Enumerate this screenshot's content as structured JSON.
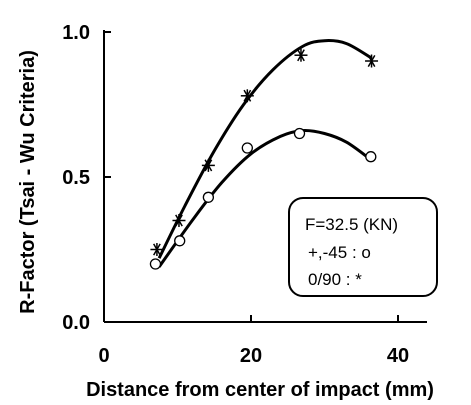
{
  "chart_data": {
    "type": "scatter",
    "xlabel": "Distance from center of impact (mm)",
    "ylabel": "R-Factor  (Tsai - Wu Criteria)",
    "xlim": [
      0,
      42
    ],
    "ylim": [
      0,
      1.0
    ],
    "xticks": [
      0,
      20,
      40
    ],
    "yticks": [
      0.0,
      0.5,
      1.0
    ],
    "xtick_labels": [
      "0",
      "20",
      "40"
    ],
    "ytick_labels": [
      "0.0",
      "0.5",
      "1.0"
    ],
    "grid": false,
    "legend_box": {
      "lines": [
        "F=32.5 (KN)",
        "+,-45 :  o",
        "0/90  : *"
      ],
      "placement": "bottom-right"
    },
    "series": [
      {
        "marker": "circle",
        "x": [
          7.0,
          10.3,
          14.2,
          19.5,
          26.6,
          36.3
        ],
        "y": [
          0.2,
          0.28,
          0.43,
          0.6,
          0.65,
          0.57
        ],
        "fit_x": [
          7.5,
          12,
          16,
          20,
          24,
          27,
          30,
          33,
          36.3
        ],
        "fit_y": [
          0.19,
          0.35,
          0.48,
          0.58,
          0.64,
          0.66,
          0.65,
          0.62,
          0.56
        ]
      },
      {
        "marker": "asterisk",
        "x": [
          7.2,
          10.2,
          14.2,
          19.5,
          26.8,
          36.4
        ],
        "y": [
          0.25,
          0.35,
          0.54,
          0.78,
          0.92,
          0.9
        ],
        "fit_x": [
          7.5,
          11,
          15,
          19,
          23,
          27,
          30,
          33,
          36.4
        ],
        "fit_y": [
          0.22,
          0.4,
          0.59,
          0.75,
          0.87,
          0.95,
          0.97,
          0.96,
          0.91
        ]
      }
    ]
  }
}
